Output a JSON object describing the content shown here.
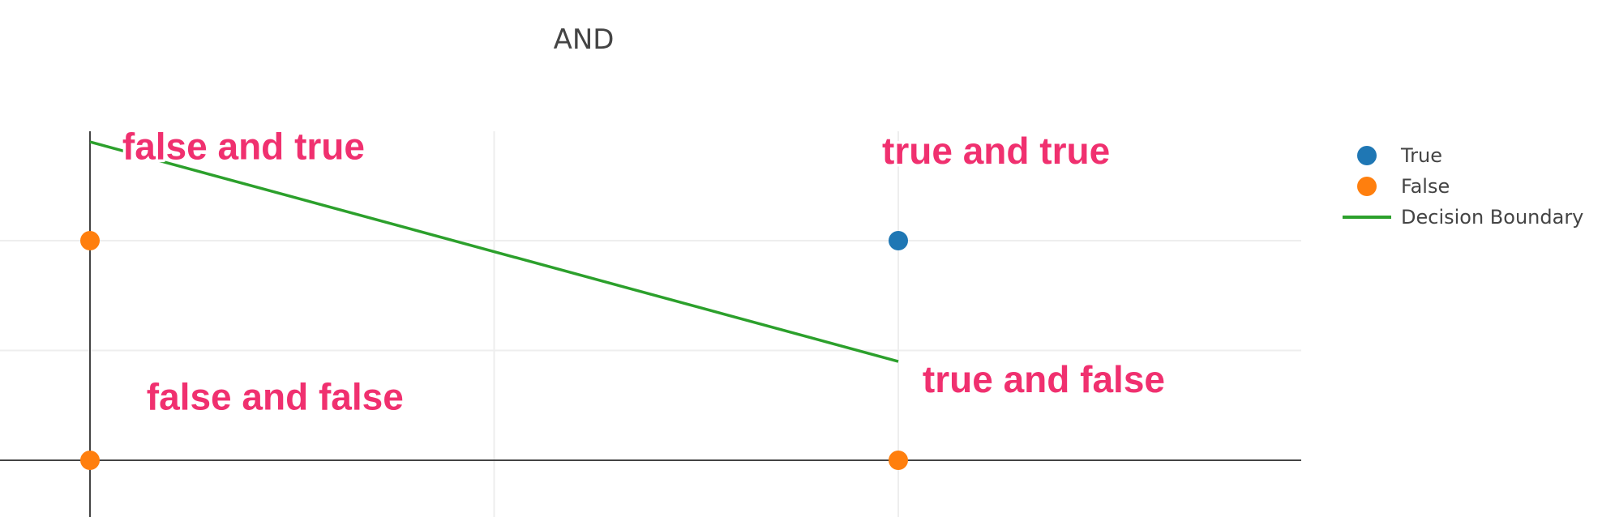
{
  "chart_data": {
    "type": "scatter",
    "title": "AND",
    "xlabel": "",
    "ylabel": "",
    "xlim": [
      -0.11,
      1.5
    ],
    "ylim": [
      -0.26,
      1.5
    ],
    "grid": true,
    "legend_position": "right",
    "series": [
      {
        "name": "True",
        "mode": "markers",
        "color": "#1f77b4",
        "points": [
          {
            "x": 1,
            "y": 1
          }
        ]
      },
      {
        "name": "False",
        "mode": "markers",
        "color": "#ff7f0e",
        "points": [
          {
            "x": 0,
            "y": 1
          },
          {
            "x": 0,
            "y": 0
          },
          {
            "x": 1,
            "y": 0
          }
        ]
      },
      {
        "name": "Decision Boundary",
        "mode": "line",
        "color": "#2ca02c",
        "points": [
          {
            "x": 0,
            "y": 1.45
          },
          {
            "x": 1,
            "y": 0.45
          }
        ]
      }
    ],
    "annotations": [
      {
        "text": "false and true",
        "x": 0.04,
        "y": 1.37
      },
      {
        "text": "true and true",
        "x": 0.98,
        "y": 1.35
      },
      {
        "text": "false and false",
        "x": 0.07,
        "y": 0.23
      },
      {
        "text": "true and false",
        "x": 1.03,
        "y": 0.31
      }
    ]
  }
}
